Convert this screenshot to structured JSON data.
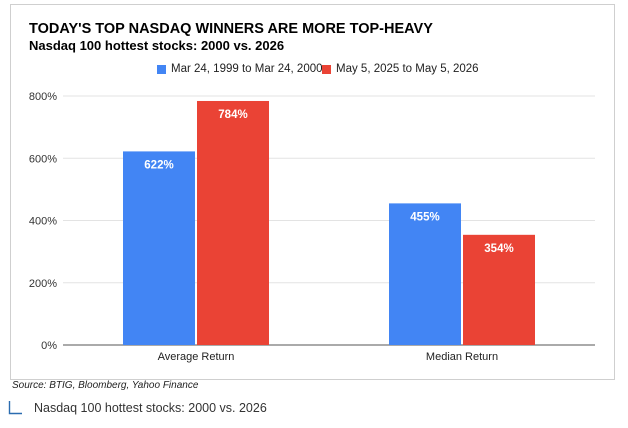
{
  "chart_data": {
    "type": "bar",
    "title": "TODAY'S TOP NASDAQ WINNERS ARE MORE TOP-HEAVY",
    "subtitle": "Nasdaq 100 hottest stocks: 2000 vs. 2026",
    "categories": [
      "Average Return",
      "Median Return"
    ],
    "series": [
      {
        "name": "Mar 24, 1999 to Mar 24, 2000",
        "values": [
          622,
          455
        ],
        "labels": [
          "622%",
          "455%"
        ],
        "color": "#4285f4"
      },
      {
        "name": "May 5, 2025 to May 5, 2026",
        "values": [
          784,
          354
        ],
        "labels": [
          "784%",
          "354%"
        ],
        "color": "#ea4335"
      }
    ],
    "y_ticks": [
      0,
      200,
      400,
      600,
      800
    ],
    "y_tick_labels": [
      "0%",
      "200%",
      "400%",
      "600%",
      "800%"
    ],
    "ylim": [
      0,
      800
    ],
    "xlabel": "",
    "ylabel": "",
    "grid": true,
    "legend_position": "top-center"
  },
  "source": "Source: BTIG, Bloomberg, Yahoo Finance",
  "caption": "Nasdaq 100 hottest stocks: 2000 vs. 2026",
  "caption_icon": "corner-arrow-icon"
}
